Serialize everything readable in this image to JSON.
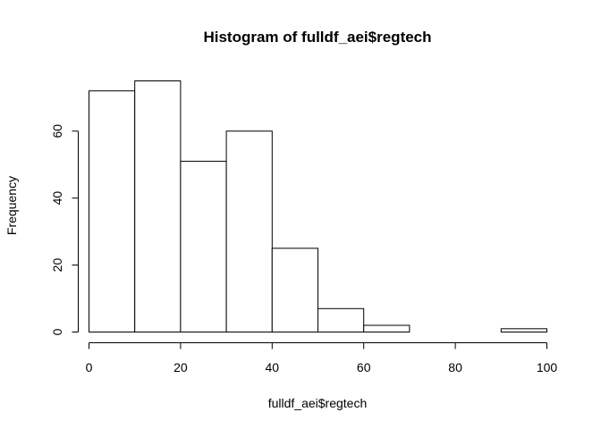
{
  "chart_data": {
    "type": "bar",
    "title": "Histogram of fulldf_aei$regtech",
    "xlabel": "fulldf_aei$regtech",
    "ylabel": "Frequency",
    "bins": [
      {
        "start": 0,
        "end": 10,
        "count": 72
      },
      {
        "start": 10,
        "end": 20,
        "count": 75
      },
      {
        "start": 20,
        "end": 30,
        "count": 51
      },
      {
        "start": 30,
        "end": 40,
        "count": 60
      },
      {
        "start": 40,
        "end": 50,
        "count": 25
      },
      {
        "start": 50,
        "end": 60,
        "count": 7
      },
      {
        "start": 60,
        "end": 70,
        "count": 2
      },
      {
        "start": 70,
        "end": 80,
        "count": 0
      },
      {
        "start": 80,
        "end": 90,
        "count": 0
      },
      {
        "start": 90,
        "end": 100,
        "count": 1
      }
    ],
    "xlim": [
      0,
      100
    ],
    "ylim": [
      0,
      75
    ],
    "xticks": [
      "0",
      "20",
      "40",
      "60",
      "80",
      "100"
    ],
    "yticks": [
      "0",
      "20",
      "40",
      "60"
    ],
    "grid": false
  }
}
